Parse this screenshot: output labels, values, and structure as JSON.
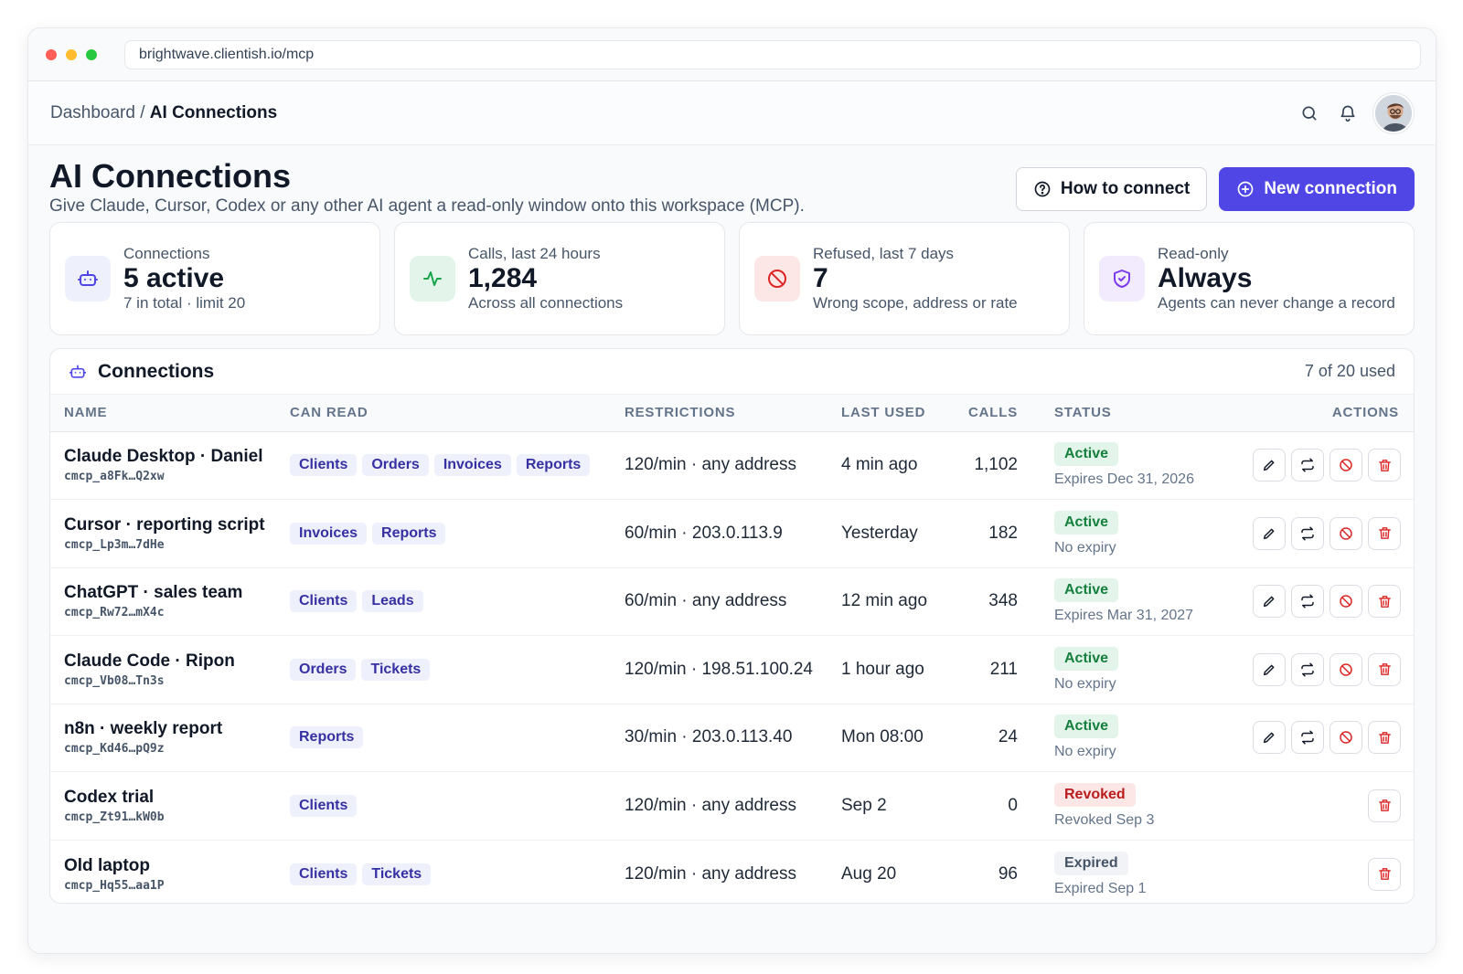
{
  "browser": {
    "url": "brightwave.clientish.io/mcp"
  },
  "breadcrumb": {
    "parent": "Dashboard",
    "separator": " / ",
    "current": "AI Connections"
  },
  "header": {
    "title": "AI Connections",
    "subtitle": "Give Claude, Cursor, Codex or any other AI agent a read-only window onto this workspace (MCP).",
    "how_label": "How to connect",
    "new_label": "New connection"
  },
  "stats": [
    {
      "label": "Connections",
      "value": "5 active",
      "note": "7 in total · limit 20",
      "icon": "robot-icon",
      "bg": "#eef0fb",
      "fg": "#4f46e5"
    },
    {
      "label": "Calls, last 24 hours",
      "value": "1,284",
      "note": "Across all connections",
      "icon": "activity-icon",
      "bg": "#e3f5ea",
      "fg": "#16a34a"
    },
    {
      "label": "Refused, last 7 days",
      "value": "7",
      "note": "Wrong scope, address or rate",
      "icon": "ban-icon",
      "bg": "#fde6e6",
      "fg": "#dc2626"
    },
    {
      "label": "Read-only",
      "value": "Always",
      "note": "Agents can never change a record",
      "icon": "shield-icon",
      "bg": "#f1ebfd",
      "fg": "#7c3aed"
    }
  ],
  "panel": {
    "title": "Connections",
    "used": "7 of 20 used"
  },
  "columns": [
    "NAME",
    "CAN READ",
    "RESTRICTIONS",
    "LAST USED",
    "CALLS",
    "STATUS",
    "ACTIONS"
  ],
  "rows": [
    {
      "name": "Claude Desktop · Daniel",
      "key": "cmcp_a8Fk…Q2xw",
      "scopes": [
        "Clients",
        "Orders",
        "Invoices",
        "Reports"
      ],
      "restrictions": "120/min · any address",
      "last_used": "4 min ago",
      "calls": "1,102",
      "status": "Active",
      "status_kind": "active",
      "expiry": "Expires Dec 31, 2026",
      "full_actions": true
    },
    {
      "name": "Cursor · reporting script",
      "key": "cmcp_Lp3m…7dHe",
      "scopes": [
        "Invoices",
        "Reports"
      ],
      "restrictions": "60/min · 203.0.113.9",
      "last_used": "Yesterday",
      "calls": "182",
      "status": "Active",
      "status_kind": "active",
      "expiry": "No expiry",
      "full_actions": true
    },
    {
      "name": "ChatGPT · sales team",
      "key": "cmcp_Rw72…mX4c",
      "scopes": [
        "Clients",
        "Leads"
      ],
      "restrictions": "60/min · any address",
      "last_used": "12 min ago",
      "calls": "348",
      "status": "Active",
      "status_kind": "active",
      "expiry": "Expires Mar 31, 2027",
      "full_actions": true
    },
    {
      "name": "Claude Code · Ripon",
      "key": "cmcp_Vb08…Tn3s",
      "scopes": [
        "Orders",
        "Tickets"
      ],
      "restrictions": "120/min · 198.51.100.24",
      "last_used": "1 hour ago",
      "calls": "211",
      "status": "Active",
      "status_kind": "active",
      "expiry": "No expiry",
      "full_actions": true
    },
    {
      "name": "n8n · weekly report",
      "key": "cmcp_Kd46…pQ9z",
      "scopes": [
        "Reports"
      ],
      "restrictions": "30/min · 203.0.113.40",
      "last_used": "Mon 08:00",
      "calls": "24",
      "status": "Active",
      "status_kind": "active",
      "expiry": "No expiry",
      "full_actions": true
    },
    {
      "name": "Codex trial",
      "key": "cmcp_Zt91…kW0b",
      "scopes": [
        "Clients"
      ],
      "restrictions": "120/min · any address",
      "last_used": "Sep 2",
      "calls": "0",
      "status": "Revoked",
      "status_kind": "revoked",
      "expiry": "Revoked Sep 3",
      "full_actions": false
    },
    {
      "name": "Old laptop",
      "key": "cmcp_Hq55…aa1P",
      "scopes": [
        "Clients",
        "Tickets"
      ],
      "restrictions": "120/min · any address",
      "last_used": "Aug 20",
      "calls": "96",
      "status": "Expired",
      "status_kind": "expired",
      "expiry": "Expired Sep 1",
      "full_actions": false
    }
  ],
  "action_icons": [
    "edit-icon",
    "rotate-key-icon",
    "revoke-icon",
    "delete-icon"
  ],
  "colors": {
    "accent": "#4f46e5",
    "success": "#15803d",
    "danger": "#dc2626"
  }
}
